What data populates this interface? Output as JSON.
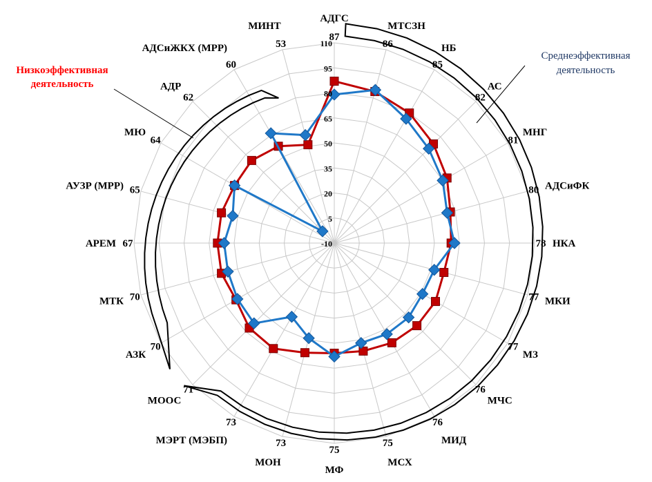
{
  "chart_data": {
    "type": "radar",
    "categories": [
      "АДГС",
      "МТСЗН",
      "НБ",
      "АС",
      "МНГ",
      "АДСиФК",
      "НКА",
      "МКИ",
      "МЗ",
      "МЧС",
      "МИД",
      "МСХ",
      "МФ",
      "МОН",
      "МЭРТ (МЭБП)",
      "МООС",
      "АЗК",
      "МТК",
      "АРЕМ",
      "АУЗР (МРР)",
      "МЮ",
      "АДР",
      "АДСиЖКХ (МРР)",
      "МИНТ"
    ],
    "scores": [
      "87",
      "86",
      "85",
      "82",
      "81",
      "80",
      "78",
      "77",
      "77",
      "76",
      "76",
      "75",
      "75",
      "73",
      "73",
      "71",
      "70",
      "70",
      "67",
      "65",
      "64",
      "62",
      "60",
      "53"
    ],
    "ticks": [
      -10,
      5,
      20,
      35,
      50,
      65,
      80,
      95,
      110
    ],
    "tick_labels": [
      "-10",
      "5",
      "20",
      "35",
      "50",
      "65",
      "80",
      "95",
      "110"
    ],
    "rlim": [
      -10,
      110
    ],
    "grid": true,
    "series": [
      {
        "color": "#c00000",
        "marker": "square",
        "values": [
          87,
          84,
          80,
          74,
          68,
          62,
          60,
          58,
          60,
          60,
          59,
          57,
          56,
          58,
          63,
          62,
          58,
          60,
          60,
          60,
          59,
          60,
          57,
          51
        ]
      },
      {
        "color": "#1f78c8",
        "marker": "diamond",
        "values": [
          79,
          85,
          76,
          70,
          65,
          60,
          62,
          52,
          51,
          53,
          53,
          52,
          58,
          49,
          41,
          58,
          57,
          56,
          56,
          53,
          59,
          0,
          66,
          57
        ]
      }
    ],
    "annotations": {
      "low": {
        "text_line1": "Низкоэффективная",
        "text_line2": "деятельность",
        "color": "#ff0000"
      },
      "mid": {
        "text_line1": "Среднеэффективная",
        "text_line2": "деятельность",
        "color": "#1f3864"
      }
    }
  }
}
